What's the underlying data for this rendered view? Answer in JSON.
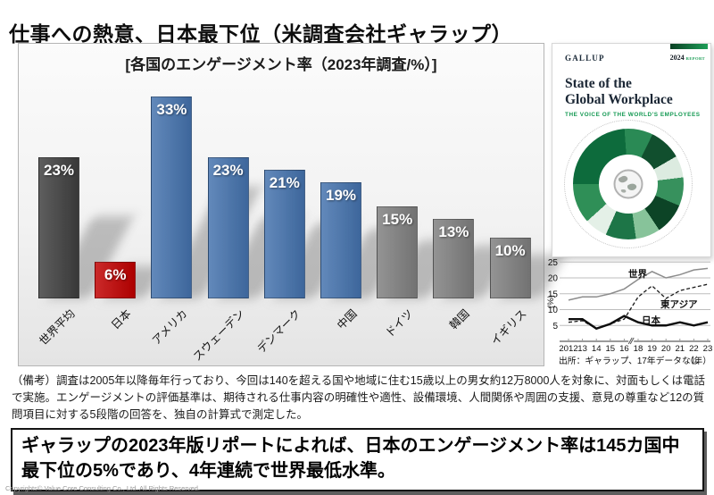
{
  "page": {
    "title": "仕事への熱意、日本最下位（米調査会社ギャラップ）",
    "copyright": "Copyrights© Value Core Consulting Co., Ltd.  All Rights Reserved."
  },
  "colors": {
    "bar_world_average": "#3f3f3f",
    "bar_japan_red": "#c00000",
    "bar_blue": "#4472ad",
    "bar_gray": "#7f7f7f",
    "gallup_green": "#169a54",
    "gallup_dark_green": "#0a3f23"
  },
  "chart_data": [
    {
      "type": "bar",
      "title": "[各国のエンゲージメント率（2023年調査/%）]",
      "categories": [
        "世界平均",
        "日本",
        "アメリカ",
        "スウェーデン",
        "デンマーク",
        "中国",
        "ドイツ",
        "韓国",
        "イギリス"
      ],
      "values": [
        23,
        6,
        33,
        23,
        21,
        19,
        15,
        13,
        10
      ],
      "labels": [
        "23%",
        "6%",
        "33%",
        "23%",
        "21%",
        "19%",
        "15%",
        "13%",
        "10%"
      ],
      "colors": [
        "#3f3f3f",
        "#c00000",
        "#4472ad",
        "#4472ad",
        "#4472ad",
        "#4472ad",
        "#7f7f7f",
        "#7f7f7f",
        "#7f7f7f"
      ],
      "ylim": [
        0,
        35
      ],
      "grid": false,
      "legend": "none"
    },
    {
      "type": "line",
      "x": [
        "2012",
        "13",
        "14",
        "15",
        "16",
        "18",
        "19",
        "20",
        "21",
        "22",
        "23"
      ],
      "series": [
        {
          "key": "world",
          "name": "世界",
          "line": "solid",
          "color": "#8c8c8c",
          "width": 1.5,
          "values": [
            13,
            14,
            14,
            15,
            16.5,
            19.5,
            22,
            20,
            21,
            22.5,
            23
          ]
        },
        {
          "key": "east-asia",
          "name": "東アジア",
          "line": "dashed",
          "color": "#1a1a1a",
          "width": 1.3,
          "values": [
            6,
            6.5,
            4,
            5.5,
            7,
            14,
            17.5,
            13.5,
            16,
            17,
            18
          ]
        },
        {
          "key": "japan",
          "name": "日本",
          "line": "solid",
          "color": "#0d0d0d",
          "width": 2.4,
          "values": [
            7,
            7,
            4,
            5.5,
            8,
            6,
            5,
            5,
            6,
            5,
            6
          ]
        }
      ],
      "ylabel": "(%)",
      "yticks": [
        5,
        10,
        15,
        20,
        25
      ],
      "ylim": [
        0,
        25
      ],
      "grid": true,
      "axis_break_between": [
        "16",
        "18"
      ],
      "source_note": "出所：ギャラップ、17年データなし",
      "unit_note": "（年）"
    }
  ],
  "report_cover": {
    "brand": "GALLUP",
    "year": "2024",
    "year_suffix": "REPORT",
    "title_lines": [
      "State of the",
      "Global Workplace"
    ],
    "subtitle": "THE VOICE OF THE WORLD'S EMPLOYEES"
  },
  "remarks": "（備考）調査は2005年以降毎年行っており、今回は140を超える国や地域に住む15歳以上の男女約12万8000人を対象に、対面もしくは電話で実施。エンゲージメントの評価基準は、期待される仕事内容の明確性や適性、設備環境、人間関係や周囲の支援、意見の尊重など12の質問項目に対する5段階の回答を、独自の計算式で測定した。",
  "highlight": "ギャラップの2023年版リポートによれば、日本のエンゲージメント率は145カ国中最下位の5%であり、4年連続で世界最低水準。"
}
